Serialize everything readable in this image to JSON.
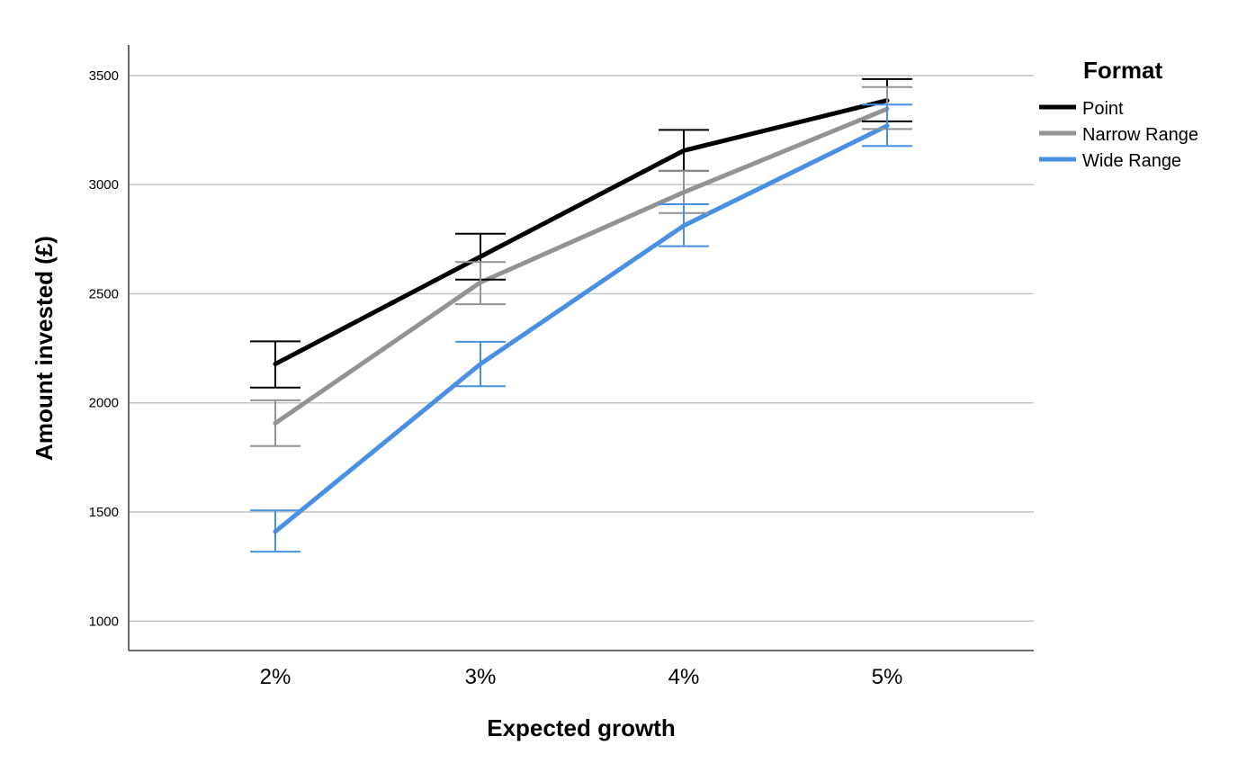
{
  "chart_data": {
    "type": "line",
    "title": "",
    "xlabel": "Expected growth",
    "ylabel": "Amount invested (£)",
    "categories": [
      "2%",
      "3%",
      "4%",
      "5%"
    ],
    "ylim": [
      865,
      3640
    ],
    "yticks": [
      "1000",
      "1500",
      "2000",
      "2500",
      "3000",
      "3500"
    ],
    "grid": true,
    "error_bars": true,
    "legend": {
      "title": "Format",
      "position": "right"
    },
    "series": [
      {
        "name": "Point",
        "color": "#000000",
        "values": [
          2178,
          2670,
          3156,
          3386
        ],
        "error_low": [
          2070,
          2565,
          3063,
          3290
        ],
        "error_high": [
          2282,
          2775,
          3251,
          3484
        ]
      },
      {
        "name": "Narrow Range",
        "color": "#939393",
        "values": [
          1907,
          2552,
          2965,
          3347
        ],
        "error_low": [
          1802,
          2452,
          2870,
          3255
        ],
        "error_high": [
          2012,
          2645,
          3062,
          3447
        ]
      },
      {
        "name": "Wide Range",
        "color": "#4a90e2",
        "values": [
          1410,
          2178,
          2812,
          3270
        ],
        "error_low": [
          1318,
          2076,
          2718,
          3177
        ],
        "error_high": [
          1507,
          2280,
          2910,
          3367
        ]
      }
    ]
  }
}
